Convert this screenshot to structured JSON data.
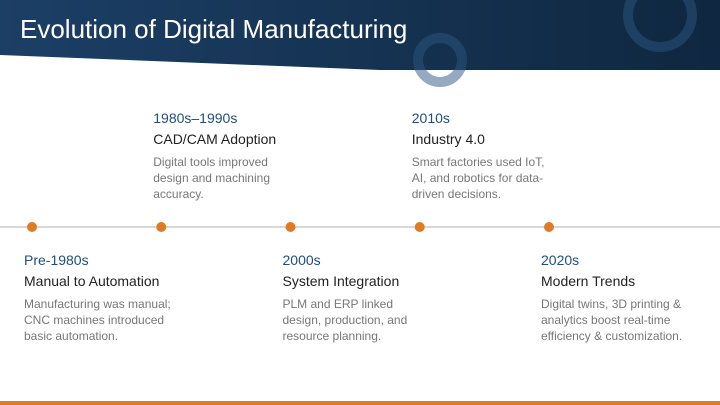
{
  "header": {
    "title": "Evolution of Digital Manufacturing"
  },
  "timeline": [
    {
      "period": "Pre-1980s",
      "heading": "Manual to Automation",
      "description": [
        "Manufacturing was manual;",
        "CNC machines introduced",
        "basic automation."
      ]
    },
    {
      "period": "1980s–1990s",
      "heading": "CAD/CAM Adoption",
      "description": [
        "Digital tools improved",
        "design and machining",
        "accuracy."
      ]
    },
    {
      "period": "2000s",
      "heading": "System Integration",
      "description": [
        "PLM and ERP linked",
        "design, production, and",
        "resource planning."
      ]
    },
    {
      "period": "2010s",
      "heading": "Industry 4.0",
      "description": [
        "Smart factories used IoT,",
        "AI, and robotics for data-",
        "driven decisions."
      ]
    },
    {
      "period": "2020s",
      "heading": "Modern Trends",
      "description": [
        "Digital twins, 3D printing &",
        "analytics boost real-time",
        "efficiency & customization."
      ]
    }
  ]
}
